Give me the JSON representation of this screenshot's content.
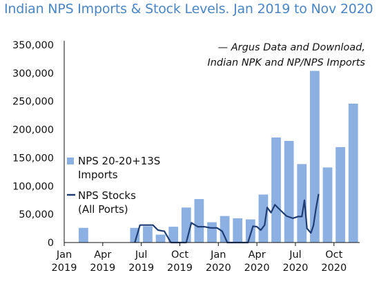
{
  "chart_data": {
    "type": "bar",
    "title": "Indian NPS Imports & Stock Levels. Jan 2019 to Nov 2020",
    "source_note": [
      "— Argus Data and Download,",
      "Indian NPK and NP/NPS Imports"
    ],
    "xlabel": "",
    "ylabel": "",
    "ylim": [
      0,
      350000
    ],
    "yticks": [
      "350,000",
      "300,000",
      "250,000",
      "200,000",
      "150,000",
      "100,000",
      "50,000",
      "0"
    ],
    "xticks": [
      {
        "month": "Jan",
        "year": "2019",
        "index": 0
      },
      {
        "month": "Apr",
        "year": "2019",
        "index": 3
      },
      {
        "month": "Jul",
        "year": "2019",
        "index": 6
      },
      {
        "month": "Oct",
        "year": "2019",
        "index": 9
      },
      {
        "month": "Jan",
        "year": "2020",
        "index": 12
      },
      {
        "month": "Apr",
        "year": "2020",
        "index": 15
      },
      {
        "month": "Jul",
        "year": "2020",
        "index": 18
      },
      {
        "month": "Oct",
        "year": "2020",
        "index": 21
      }
    ],
    "categories": [
      "Jan 2019",
      "Feb 2019",
      "Mar 2019",
      "Apr 2019",
      "May 2019",
      "Jun 2019",
      "Jul 2019",
      "Aug 2019",
      "Sep 2019",
      "Oct 2019",
      "Nov 2019",
      "Dec 2019",
      "Jan 2020",
      "Feb 2020",
      "Mar 2020",
      "Apr 2020",
      "May 2020",
      "Jun 2020",
      "Jul 2020",
      "Aug 2020",
      "Sep 2020",
      "Oct 2020",
      "Nov 2020"
    ],
    "series": [
      {
        "name": "NPS 20-20+13S Imports",
        "legend_lines": [
          "NPS 20-20+13S",
          "Imports"
        ],
        "type": "bar",
        "color": "#8db0e2",
        "values": [
          0,
          26000,
          0,
          0,
          0,
          26000,
          29000,
          14000,
          28000,
          62000,
          77000,
          36000,
          47000,
          43000,
          41000,
          85000,
          186000,
          180000,
          139000,
          304000,
          133000,
          169000,
          246000
        ]
      },
      {
        "name": "NPS Stocks (All Ports)",
        "legend_lines": [
          "NPS Stocks",
          "(All Ports)"
        ],
        "type": "line",
        "color": "#1f3d73",
        "points": [
          [
            5.0,
            0
          ],
          [
            5.4,
            31000
          ],
          [
            6.0,
            31000
          ],
          [
            6.4,
            31000
          ],
          [
            6.8,
            22000
          ],
          [
            7.3,
            20000
          ],
          [
            7.8,
            0
          ],
          [
            8.2,
            0
          ],
          [
            9.0,
            0
          ],
          [
            9.4,
            35000
          ],
          [
            9.9,
            28000
          ],
          [
            10.4,
            28000
          ],
          [
            10.9,
            26000
          ],
          [
            11.4,
            26000
          ],
          [
            11.8,
            20000
          ],
          [
            12.2,
            0
          ],
          [
            12.6,
            0
          ],
          [
            13.0,
            0
          ],
          [
            13.8,
            0
          ],
          [
            14.2,
            29000
          ],
          [
            14.5,
            28000
          ],
          [
            14.8,
            22000
          ],
          [
            15.1,
            31000
          ],
          [
            15.3,
            62000
          ],
          [
            15.6,
            53000
          ],
          [
            15.9,
            67000
          ],
          [
            16.3,
            58000
          ],
          [
            16.8,
            47000
          ],
          [
            17.3,
            43000
          ],
          [
            17.7,
            46000
          ],
          [
            18.0,
            46000
          ],
          [
            18.2,
            75000
          ],
          [
            18.4,
            25000
          ],
          [
            18.7,
            17000
          ],
          [
            18.9,
            30000
          ],
          [
            19.1,
            60000
          ],
          [
            19.3,
            86000
          ]
        ]
      }
    ],
    "grid": false,
    "legend": "left"
  }
}
